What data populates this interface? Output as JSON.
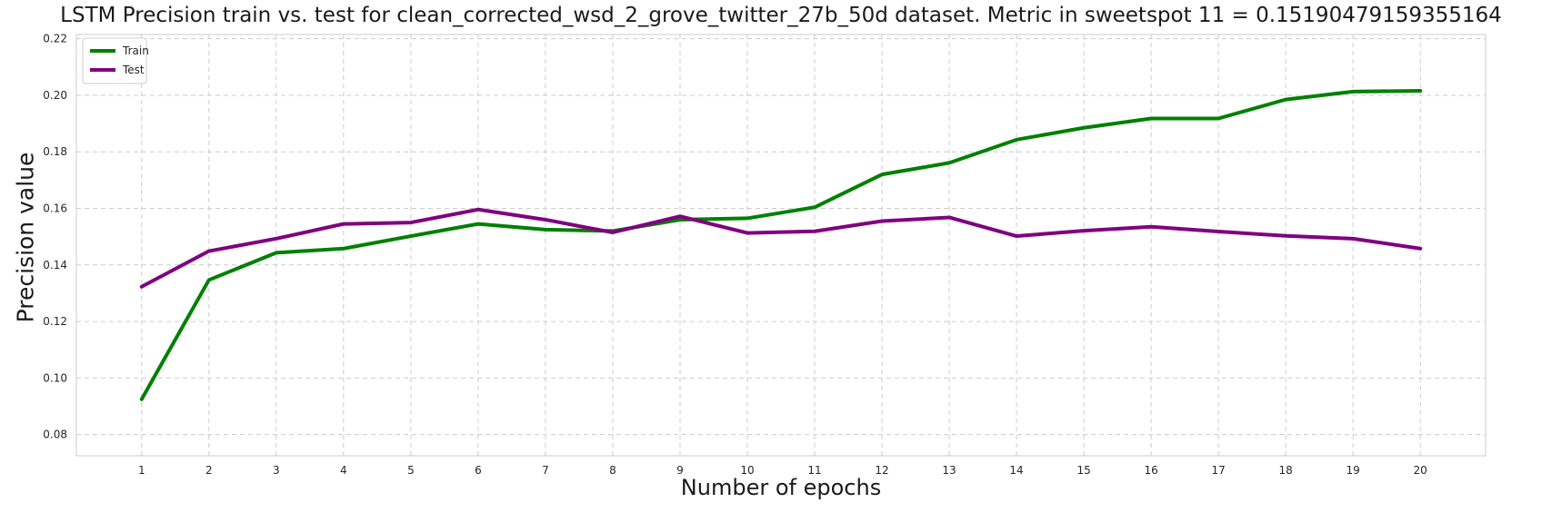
{
  "chart_data": {
    "type": "line",
    "title": "LSTM Precision train vs. test for clean_corrected_wsd_2_grove_twitter_27b_50d dataset. Metric in sweetspot 11 = 0.15190479159355164",
    "xlabel": "Number of epochs",
    "ylabel": "Precision value",
    "x": [
      1,
      2,
      3,
      4,
      5,
      6,
      7,
      8,
      9,
      10,
      11,
      12,
      13,
      14,
      15,
      16,
      17,
      18,
      19,
      20
    ],
    "x_tick_labels": [
      "1",
      "2",
      "3",
      "4",
      "5",
      "6",
      "7",
      "8",
      "9",
      "10",
      "11",
      "12",
      "13",
      "14",
      "15",
      "16",
      "17",
      "18",
      "19",
      "20"
    ],
    "y_ticks": [
      0.08,
      0.1,
      0.12,
      0.14,
      0.16,
      0.18,
      0.2,
      0.22
    ],
    "y_tick_labels": [
      "0.08",
      "0.10",
      "0.12",
      "0.14",
      "0.16",
      "0.18",
      "0.20",
      "0.22"
    ],
    "xlim": [
      0.03,
      20.97
    ],
    "ylim": [
      0.0725,
      0.2215
    ],
    "grid": true,
    "legend_position": "top-left",
    "series": [
      {
        "name": "Train",
        "color": "#008000",
        "values": [
          0.0925,
          0.1347,
          0.1443,
          0.1458,
          0.1502,
          0.1545,
          0.1525,
          0.152,
          0.156,
          0.1565,
          0.1604,
          0.172,
          0.1761,
          0.1843,
          0.1885,
          0.1918,
          0.1918,
          0.1985,
          0.2013,
          0.2016
        ]
      },
      {
        "name": "Test",
        "color": "#800080",
        "values": [
          0.1323,
          0.1449,
          0.1493,
          0.1545,
          0.155,
          0.1596,
          0.156,
          0.1515,
          0.1572,
          0.1513,
          0.1519,
          0.1555,
          0.1568,
          0.1502,
          0.1521,
          0.1535,
          0.1518,
          0.1503,
          0.1493,
          0.1458
        ]
      }
    ]
  }
}
